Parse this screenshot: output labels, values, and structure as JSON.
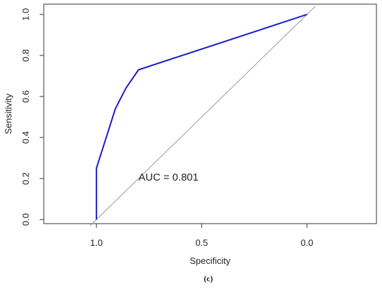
{
  "chart_data": {
    "type": "line",
    "title": "",
    "xlabel": "Specificity",
    "ylabel": "Sensitivity",
    "x_reversed": true,
    "xlim": [
      1.25,
      -0.33
    ],
    "ylim": [
      -0.02,
      1.05
    ],
    "x_ticks": [
      1.0,
      0.5,
      0.0
    ],
    "x_tick_labels": [
      "1.0",
      "0.5",
      "0.0"
    ],
    "y_ticks": [
      0.0,
      0.2,
      0.4,
      0.6,
      0.8,
      1.0
    ],
    "y_tick_labels": [
      "0.0",
      "0.2",
      "0.4",
      "0.6",
      "0.8",
      "1.0"
    ],
    "grid": false,
    "series": [
      {
        "color": "#1a1acc",
        "x": [
          1.0,
          1.0,
          0.91,
          0.86,
          0.8,
          0.0
        ],
        "y": [
          0.0,
          0.25,
          0.54,
          0.64,
          0.73,
          1.0
        ]
      },
      {
        "color": "#999999",
        "x": [
          1.03,
          -0.04
        ],
        "y": [
          -0.03,
          1.04
        ]
      }
    ],
    "annotations": [
      {
        "text": "AUC = 0.801",
        "x": 0.8,
        "y": 0.19
      }
    ],
    "caption": "(c)"
  }
}
